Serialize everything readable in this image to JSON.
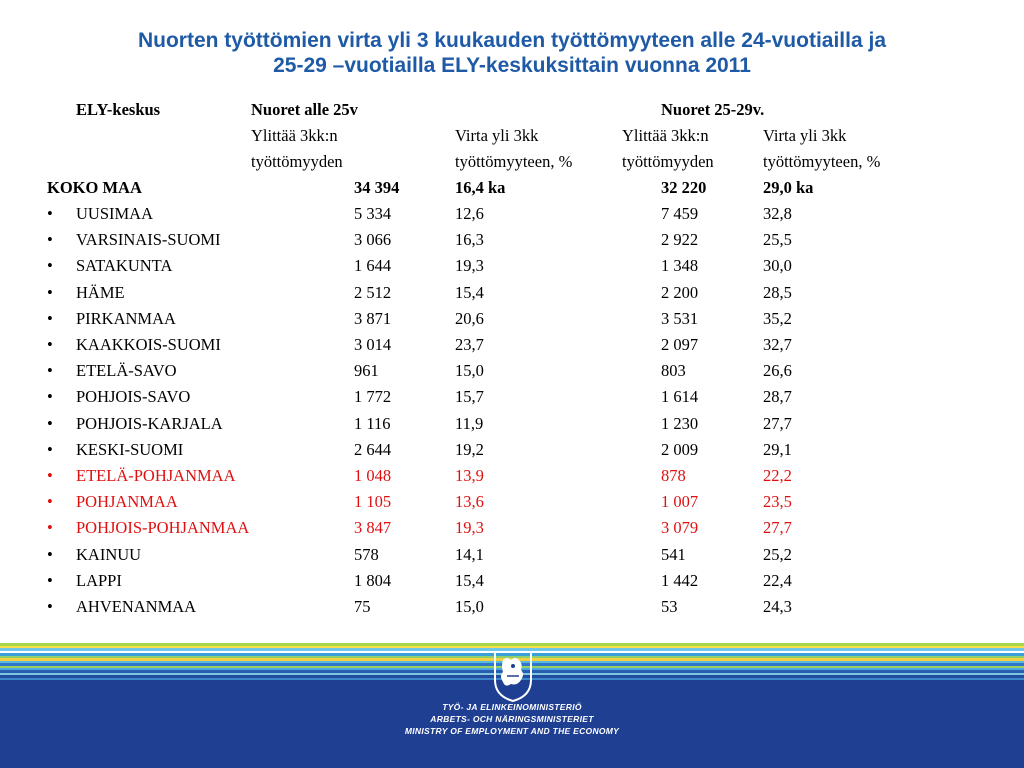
{
  "title_line1": "Nuorten työttömien virta yli 3 kuukauden työttömyyteen alle 24-vuotiailla ja",
  "title_line2": "25-29 –vuotiailla ELY-keskuksittain vuonna 2011",
  "headers": {
    "region": "ELY-keskus",
    "group1": "Nuoret alle 25v",
    "group2": "Nuoret 25-29v.",
    "sub_a1": "Ylittää 3kk:n",
    "sub_a2": "työttömyyden",
    "sub_b1": "Virta yli 3kk",
    "sub_b2": "työttömyyteen, %",
    "sub_c1": "Ylittää 3kk:n",
    "sub_c2": "työttömyyden",
    "sub_d1": "Virta yli 3kk",
    "sub_d2": "työttömyyteen, %"
  },
  "total": {
    "name": "KOKO MAA",
    "a": "34 394",
    "b": "16,4  ka",
    "c": "32 220",
    "d": "29,0  ka"
  },
  "bullet": "•",
  "rows": [
    {
      "name": "UUSIMAA",
      "a": "5 334",
      "b": "12,6",
      "c": "7 459",
      "d": "32,8",
      "highlight": false
    },
    {
      "name": "VARSINAIS-SUOMI",
      "a": "3 066",
      "b": "16,3",
      "c": "2 922",
      "d": "25,5",
      "highlight": false
    },
    {
      "name": "SATAKUNTA",
      "a": "1 644",
      "b": "19,3",
      "c": "1 348",
      "d": "30,0",
      "highlight": false
    },
    {
      "name": "HÄME",
      "a": "2 512",
      "b": "15,4",
      "c": "2 200",
      "d": "28,5",
      "highlight": false
    },
    {
      "name": "PIRKANMAA",
      "a": "3 871",
      "b": "20,6",
      "c": "3 531",
      "d": "35,2",
      "highlight": false
    },
    {
      "name": "KAAKKOIS-SUOMI",
      "a": "3 014",
      "b": "23,7",
      "c": "2 097",
      "d": "32,7",
      "highlight": false
    },
    {
      "name": "ETELÄ-SAVO",
      "a": "961",
      "b": "15,0",
      "c": "803",
      "d": "26,6",
      "highlight": false
    },
    {
      "name": "POHJOIS-SAVO",
      "a": "1 772",
      "b": "15,7",
      "c": "1 614",
      "d": "28,7",
      "highlight": false
    },
    {
      "name": "POHJOIS-KARJALA",
      "a": "1 116",
      "b": "11,9",
      "c": "1 230",
      "d": "27,7",
      "highlight": false
    },
    {
      "name": "KESKI-SUOMI",
      "a": "2 644",
      "b": "19,2",
      "c": "2 009",
      "d": "29,1",
      "highlight": false
    },
    {
      "name": "ETELÄ-POHJANMAA",
      "a": "1 048",
      "b": "13,9",
      "c": "878",
      "d": "22,2",
      "highlight": true
    },
    {
      "name": "POHJANMAA",
      "a": "1 105",
      "b": "13,6",
      "c": "1 007",
      "d": "23,5",
      "highlight": true
    },
    {
      "name": "POHJOIS-POHJANMAA",
      "a": "3 847",
      "b": "19,3",
      "c": "3 079",
      "d": "27,7",
      "highlight": true
    },
    {
      "name": "KAINUU",
      "a": "578",
      "b": "14,1",
      "c": "541",
      "d": "25,2",
      "highlight": false
    },
    {
      "name": "LAPPI",
      "a": "1 804",
      "b": "15,4",
      "c": "1 442",
      "d": "22,4",
      "highlight": false
    },
    {
      "name": "AHVENANMAA",
      "a": "75",
      "b": "15,0",
      "c": "53",
      "d": "24,3",
      "highlight": false
    }
  ],
  "colors": {
    "title": "#1f5aa6",
    "highlight": "#e01010",
    "footer": "#1f3f93"
  },
  "ministry": {
    "line1": "TYÖ- JA ELINKEINOMINISTERIÖ",
    "line2": "ARBETS- OCH NÄRINGSMINISTERIET",
    "line3": "MINISTRY OF EMPLOYMENT AND THE ECONOMY",
    "emblem_icon": "finnish-lion-coat-of-arms"
  }
}
